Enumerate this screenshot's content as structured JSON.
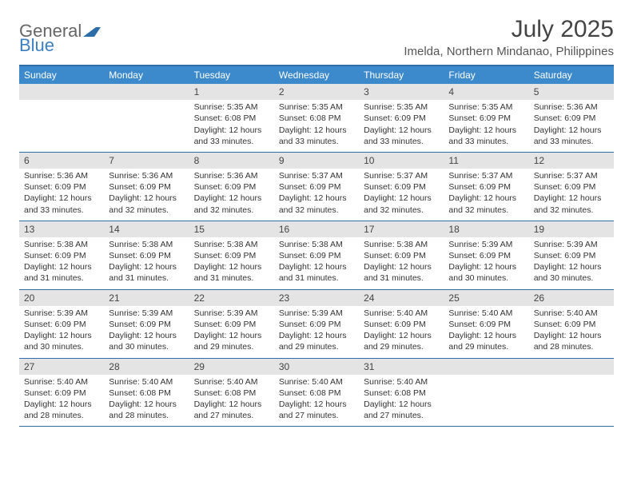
{
  "brand": {
    "part1": "General",
    "part2": "Blue"
  },
  "title": "July 2025",
  "location": "Imelda, Northern Mindanao, Philippines",
  "colors": {
    "header_bg": "#3c89cc",
    "header_border": "#2d6ea8",
    "daynum_bg": "#e4e4e4",
    "text": "#333333",
    "brand_gray": "#666666",
    "brand_blue": "#3c7fbf"
  },
  "weekdays": [
    "Sunday",
    "Monday",
    "Tuesday",
    "Wednesday",
    "Thursday",
    "Friday",
    "Saturday"
  ],
  "weeks": [
    [
      {
        "n": "",
        "sunrise": "",
        "sunset": "",
        "daylight": ""
      },
      {
        "n": "",
        "sunrise": "",
        "sunset": "",
        "daylight": ""
      },
      {
        "n": "1",
        "sunrise": "Sunrise: 5:35 AM",
        "sunset": "Sunset: 6:08 PM",
        "daylight": "Daylight: 12 hours and 33 minutes."
      },
      {
        "n": "2",
        "sunrise": "Sunrise: 5:35 AM",
        "sunset": "Sunset: 6:08 PM",
        "daylight": "Daylight: 12 hours and 33 minutes."
      },
      {
        "n": "3",
        "sunrise": "Sunrise: 5:35 AM",
        "sunset": "Sunset: 6:09 PM",
        "daylight": "Daylight: 12 hours and 33 minutes."
      },
      {
        "n": "4",
        "sunrise": "Sunrise: 5:35 AM",
        "sunset": "Sunset: 6:09 PM",
        "daylight": "Daylight: 12 hours and 33 minutes."
      },
      {
        "n": "5",
        "sunrise": "Sunrise: 5:36 AM",
        "sunset": "Sunset: 6:09 PM",
        "daylight": "Daylight: 12 hours and 33 minutes."
      }
    ],
    [
      {
        "n": "6",
        "sunrise": "Sunrise: 5:36 AM",
        "sunset": "Sunset: 6:09 PM",
        "daylight": "Daylight: 12 hours and 33 minutes."
      },
      {
        "n": "7",
        "sunrise": "Sunrise: 5:36 AM",
        "sunset": "Sunset: 6:09 PM",
        "daylight": "Daylight: 12 hours and 32 minutes."
      },
      {
        "n": "8",
        "sunrise": "Sunrise: 5:36 AM",
        "sunset": "Sunset: 6:09 PM",
        "daylight": "Daylight: 12 hours and 32 minutes."
      },
      {
        "n": "9",
        "sunrise": "Sunrise: 5:37 AM",
        "sunset": "Sunset: 6:09 PM",
        "daylight": "Daylight: 12 hours and 32 minutes."
      },
      {
        "n": "10",
        "sunrise": "Sunrise: 5:37 AM",
        "sunset": "Sunset: 6:09 PM",
        "daylight": "Daylight: 12 hours and 32 minutes."
      },
      {
        "n": "11",
        "sunrise": "Sunrise: 5:37 AM",
        "sunset": "Sunset: 6:09 PM",
        "daylight": "Daylight: 12 hours and 32 minutes."
      },
      {
        "n": "12",
        "sunrise": "Sunrise: 5:37 AM",
        "sunset": "Sunset: 6:09 PM",
        "daylight": "Daylight: 12 hours and 32 minutes."
      }
    ],
    [
      {
        "n": "13",
        "sunrise": "Sunrise: 5:38 AM",
        "sunset": "Sunset: 6:09 PM",
        "daylight": "Daylight: 12 hours and 31 minutes."
      },
      {
        "n": "14",
        "sunrise": "Sunrise: 5:38 AM",
        "sunset": "Sunset: 6:09 PM",
        "daylight": "Daylight: 12 hours and 31 minutes."
      },
      {
        "n": "15",
        "sunrise": "Sunrise: 5:38 AM",
        "sunset": "Sunset: 6:09 PM",
        "daylight": "Daylight: 12 hours and 31 minutes."
      },
      {
        "n": "16",
        "sunrise": "Sunrise: 5:38 AM",
        "sunset": "Sunset: 6:09 PM",
        "daylight": "Daylight: 12 hours and 31 minutes."
      },
      {
        "n": "17",
        "sunrise": "Sunrise: 5:38 AM",
        "sunset": "Sunset: 6:09 PM",
        "daylight": "Daylight: 12 hours and 31 minutes."
      },
      {
        "n": "18",
        "sunrise": "Sunrise: 5:39 AM",
        "sunset": "Sunset: 6:09 PM",
        "daylight": "Daylight: 12 hours and 30 minutes."
      },
      {
        "n": "19",
        "sunrise": "Sunrise: 5:39 AM",
        "sunset": "Sunset: 6:09 PM",
        "daylight": "Daylight: 12 hours and 30 minutes."
      }
    ],
    [
      {
        "n": "20",
        "sunrise": "Sunrise: 5:39 AM",
        "sunset": "Sunset: 6:09 PM",
        "daylight": "Daylight: 12 hours and 30 minutes."
      },
      {
        "n": "21",
        "sunrise": "Sunrise: 5:39 AM",
        "sunset": "Sunset: 6:09 PM",
        "daylight": "Daylight: 12 hours and 30 minutes."
      },
      {
        "n": "22",
        "sunrise": "Sunrise: 5:39 AM",
        "sunset": "Sunset: 6:09 PM",
        "daylight": "Daylight: 12 hours and 29 minutes."
      },
      {
        "n": "23",
        "sunrise": "Sunrise: 5:39 AM",
        "sunset": "Sunset: 6:09 PM",
        "daylight": "Daylight: 12 hours and 29 minutes."
      },
      {
        "n": "24",
        "sunrise": "Sunrise: 5:40 AM",
        "sunset": "Sunset: 6:09 PM",
        "daylight": "Daylight: 12 hours and 29 minutes."
      },
      {
        "n": "25",
        "sunrise": "Sunrise: 5:40 AM",
        "sunset": "Sunset: 6:09 PM",
        "daylight": "Daylight: 12 hours and 29 minutes."
      },
      {
        "n": "26",
        "sunrise": "Sunrise: 5:40 AM",
        "sunset": "Sunset: 6:09 PM",
        "daylight": "Daylight: 12 hours and 28 minutes."
      }
    ],
    [
      {
        "n": "27",
        "sunrise": "Sunrise: 5:40 AM",
        "sunset": "Sunset: 6:09 PM",
        "daylight": "Daylight: 12 hours and 28 minutes."
      },
      {
        "n": "28",
        "sunrise": "Sunrise: 5:40 AM",
        "sunset": "Sunset: 6:08 PM",
        "daylight": "Daylight: 12 hours and 28 minutes."
      },
      {
        "n": "29",
        "sunrise": "Sunrise: 5:40 AM",
        "sunset": "Sunset: 6:08 PM",
        "daylight": "Daylight: 12 hours and 27 minutes."
      },
      {
        "n": "30",
        "sunrise": "Sunrise: 5:40 AM",
        "sunset": "Sunset: 6:08 PM",
        "daylight": "Daylight: 12 hours and 27 minutes."
      },
      {
        "n": "31",
        "sunrise": "Sunrise: 5:40 AM",
        "sunset": "Sunset: 6:08 PM",
        "daylight": "Daylight: 12 hours and 27 minutes."
      },
      {
        "n": "",
        "sunrise": "",
        "sunset": "",
        "daylight": ""
      },
      {
        "n": "",
        "sunrise": "",
        "sunset": "",
        "daylight": ""
      }
    ]
  ]
}
